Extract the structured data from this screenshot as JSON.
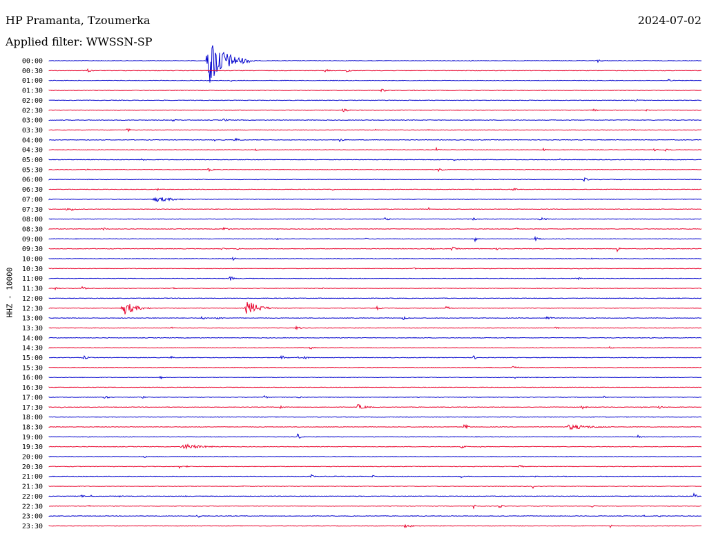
{
  "header": {
    "station": "HP Pramanta, Tzoumerka",
    "date": "2024-07-02",
    "filter": "Applied filter: WWSSN-SP",
    "channel_label": "HHZ - 10000"
  },
  "colors": {
    "trace_a": "#0000cc",
    "trace_b": "#e8002a"
  },
  "chart_data": {
    "type": "line",
    "title": "HP Pramanta, Tzoumerka",
    "ylabel": "HHZ - 10000",
    "grid": false,
    "rows": [
      {
        "time": "00:00",
        "color": "blue"
      },
      {
        "time": "00:30",
        "color": "red"
      },
      {
        "time": "01:00",
        "color": "blue"
      },
      {
        "time": "01:30",
        "color": "red"
      },
      {
        "time": "02:00",
        "color": "blue"
      },
      {
        "time": "02:30",
        "color": "red"
      },
      {
        "time": "03:00",
        "color": "blue"
      },
      {
        "time": "03:30",
        "color": "red"
      },
      {
        "time": "04:00",
        "color": "blue"
      },
      {
        "time": "04:30",
        "color": "red"
      },
      {
        "time": "05:00",
        "color": "blue"
      },
      {
        "time": "05:30",
        "color": "red"
      },
      {
        "time": "06:00",
        "color": "blue"
      },
      {
        "time": "06:30",
        "color": "red"
      },
      {
        "time": "07:00",
        "color": "blue"
      },
      {
        "time": "07:30",
        "color": "red"
      },
      {
        "time": "08:00",
        "color": "blue"
      },
      {
        "time": "08:30",
        "color": "red"
      },
      {
        "time": "09:00",
        "color": "blue"
      },
      {
        "time": "09:30",
        "color": "red"
      },
      {
        "time": "10:00",
        "color": "blue"
      },
      {
        "time": "10:30",
        "color": "red"
      },
      {
        "time": "11:00",
        "color": "blue"
      },
      {
        "time": "11:30",
        "color": "red"
      },
      {
        "time": "12:00",
        "color": "blue"
      },
      {
        "time": "12:30",
        "color": "red"
      },
      {
        "time": "13:00",
        "color": "blue"
      },
      {
        "time": "13:30",
        "color": "red"
      },
      {
        "time": "14:00",
        "color": "blue"
      },
      {
        "time": "14:30",
        "color": "red"
      },
      {
        "time": "15:00",
        "color": "blue"
      },
      {
        "time": "15:30",
        "color": "red"
      },
      {
        "time": "16:00",
        "color": "blue"
      },
      {
        "time": "16:30",
        "color": "red"
      },
      {
        "time": "17:00",
        "color": "blue"
      },
      {
        "time": "17:30",
        "color": "red"
      },
      {
        "time": "18:00",
        "color": "blue"
      },
      {
        "time": "18:30",
        "color": "red"
      },
      {
        "time": "19:00",
        "color": "blue"
      },
      {
        "time": "19:30",
        "color": "red"
      },
      {
        "time": "20:00",
        "color": "blue"
      },
      {
        "time": "20:30",
        "color": "red"
      },
      {
        "time": "21:00",
        "color": "blue"
      },
      {
        "time": "21:30",
        "color": "red"
      },
      {
        "time": "22:00",
        "color": "blue"
      },
      {
        "time": "22:30",
        "color": "red"
      },
      {
        "time": "23:00",
        "color": "blue"
      },
      {
        "time": "23:30",
        "color": "red"
      }
    ],
    "events": [
      {
        "row": "00:00",
        "at": 0.24,
        "amp": 36,
        "dur": 0.075
      },
      {
        "row": "12:30",
        "at": 0.112,
        "amp": 10,
        "dur": 0.05
      },
      {
        "row": "12:30",
        "at": 0.3,
        "amp": 12,
        "dur": 0.05
      },
      {
        "row": "18:30",
        "at": 0.635,
        "amp": 9,
        "dur": 0.012
      },
      {
        "row": "18:30",
        "at": 0.79,
        "amp": 4,
        "dur": 0.1
      },
      {
        "row": "19:00",
        "at": 0.38,
        "amp": 6,
        "dur": 0.012
      },
      {
        "row": "19:30",
        "at": 0.2,
        "amp": 4,
        "dur": 0.09
      },
      {
        "row": "22:00",
        "at": 0.988,
        "amp": 8,
        "dur": 0.008
      },
      {
        "row": "09:00",
        "at": 0.652,
        "amp": 7,
        "dur": 0.008
      },
      {
        "row": "09:30",
        "at": 0.87,
        "amp": 5,
        "dur": 0.01
      },
      {
        "row": "15:00",
        "at": 0.39,
        "amp": 5,
        "dur": 0.012
      },
      {
        "row": "17:30",
        "at": 0.47,
        "amp": 4,
        "dur": 0.04
      },
      {
        "row": "07:00",
        "at": 0.158,
        "amp": 4,
        "dur": 0.08
      }
    ]
  }
}
